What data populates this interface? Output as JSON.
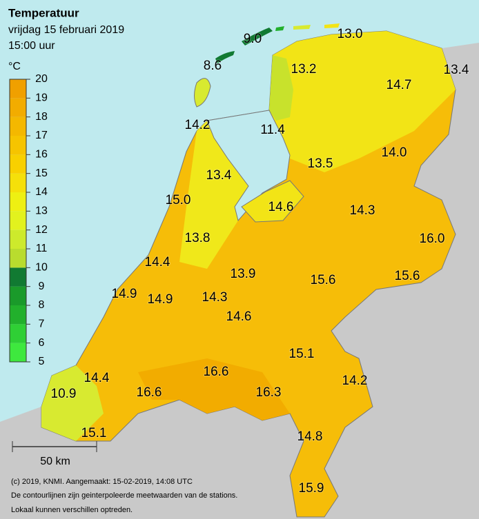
{
  "header": {
    "title": "Temperatuur",
    "date": "vrijdag 15 februari 2019",
    "time": "15:00 uur"
  },
  "legend": {
    "unit": "°C",
    "ticks": [
      5,
      6,
      7,
      8,
      9,
      10,
      11,
      12,
      13,
      14,
      15,
      16,
      17,
      18,
      19,
      20
    ],
    "colors": [
      "#3ee83e",
      "#2fcf35",
      "#22b02c",
      "#1a9a2a",
      "#117a32",
      "#b9dc2e",
      "#cdea2c",
      "#e2f21e",
      "#eef012",
      "#f5e00a",
      "#f8d000",
      "#f6c400",
      "#f4b800",
      "#f2ac00",
      "#f0a000"
    ]
  },
  "stations": [
    "9.0",
    "13.0",
    "8.6",
    "13.2",
    "13.4",
    "14.7",
    "14.2",
    "11.4",
    "14.0",
    "13.5",
    "13.4",
    "15.0",
    "14.6",
    "14.3",
    "16.0",
    "13.8",
    "14.4",
    "13.9",
    "15.6",
    "15.6",
    "14.9",
    "14.9",
    "14.3",
    "14.6",
    "15.1",
    "16.6",
    "14.4",
    "14.2",
    "10.9",
    "16.6",
    "16.3",
    "15.1",
    "14.8",
    "15.9"
  ],
  "scale": "50 km",
  "footer": [
    "(c) 2019, KNMI. Aangemaakt: 15-02-2019, 14:08 UTC",
    "De contourlijnen zijn geinterpoleerde meetwaarden van de stations.",
    "Lokaal kunnen verschillen optreden."
  ]
}
